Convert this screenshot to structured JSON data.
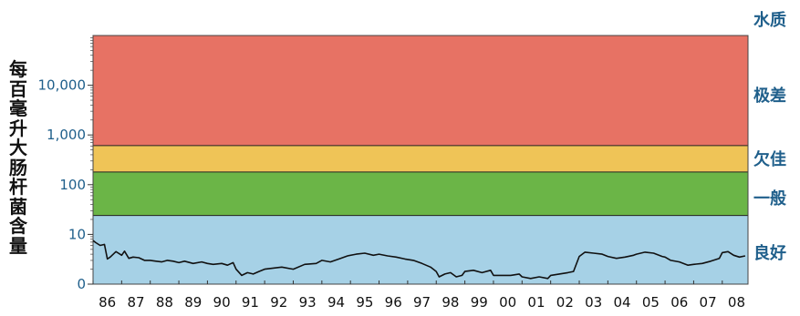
{
  "chart_data": {
    "type": "line",
    "yscale": "log",
    "ylabel": "每百毫升大肠杆菌含量",
    "ytick_labels": [
      "0",
      "10",
      "100",
      "1,000",
      "10,000"
    ],
    "ytick_values": [
      1,
      10,
      100,
      1000,
      10000
    ],
    "ylim": [
      1,
      100000
    ],
    "xtick_labels": [
      "86",
      "87",
      "88",
      "89",
      "90",
      "91",
      "92",
      "93",
      "94",
      "95",
      "96",
      "97",
      "98",
      "99",
      "00",
      "01",
      "02",
      "03",
      "04",
      "05",
      "06",
      "07",
      "08"
    ],
    "xlim": [
      1986,
      2008.9
    ],
    "legend_title": "水质",
    "bands": [
      {
        "label": "良好",
        "from": 1,
        "to": 24,
        "color": "#a6d1e6"
      },
      {
        "label": "一般",
        "from": 24,
        "to": 180,
        "color": "#6bb547"
      },
      {
        "label": "欠佳",
        "from": 180,
        "to": 610,
        "color": "#efc457"
      },
      {
        "label": "极差",
        "from": 610,
        "to": 100000,
        "color": "#e77264"
      }
    ],
    "series": [
      {
        "color": "#111111",
        "x": [
          1986.0,
          1986.1,
          1986.25,
          1986.4,
          1986.5,
          1986.6,
          1986.8,
          1987.0,
          1987.1,
          1987.25,
          1987.4,
          1987.6,
          1987.8,
          1988.0,
          1988.2,
          1988.4,
          1988.6,
          1988.8,
          1989.0,
          1989.2,
          1989.5,
          1989.8,
          1990.0,
          1990.2,
          1990.5,
          1990.7,
          1990.9,
          1991.0,
          1991.2,
          1991.4,
          1991.6,
          1991.8,
          1992.0,
          1992.3,
          1992.6,
          1993.0,
          1993.4,
          1993.8,
          1994.0,
          1994.3,
          1994.6,
          1994.9,
          1995.2,
          1995.5,
          1995.8,
          1996.0,
          1996.3,
          1996.6,
          1996.9,
          1997.2,
          1997.5,
          1997.8,
          1998.0,
          1998.1,
          1998.3,
          1998.5,
          1998.7,
          1998.9,
          1999.0,
          1999.3,
          1999.6,
          1999.9,
          2000.0,
          2000.3,
          2000.6,
          2000.9,
          2001.0,
          2001.3,
          2001.6,
          2001.9,
          2002.0,
          2002.3,
          2002.6,
          2002.8,
          2003.0,
          2003.2,
          2003.5,
          2003.8,
          2004.0,
          2004.3,
          2004.6,
          2004.9,
          2005.0,
          2005.3,
          2005.6,
          2005.9,
          2006.0,
          2006.2,
          2006.5,
          2006.8,
          2007.0,
          2007.3,
          2007.6,
          2007.9,
          2008.0,
          2008.2,
          2008.4,
          2008.6,
          2008.8
        ],
        "y": [
          7.5,
          6.8,
          6.0,
          6.3,
          3.2,
          3.5,
          4.5,
          3.8,
          4.6,
          3.3,
          3.5,
          3.4,
          3.0,
          3.0,
          2.9,
          2.8,
          3.0,
          2.9,
          2.7,
          2.9,
          2.6,
          2.8,
          2.6,
          2.5,
          2.6,
          2.4,
          2.7,
          2.0,
          1.5,
          1.7,
          1.6,
          1.8,
          2.0,
          2.1,
          2.2,
          2.0,
          2.5,
          2.6,
          3.0,
          2.8,
          3.2,
          3.7,
          4.0,
          4.2,
          3.8,
          4.0,
          3.7,
          3.5,
          3.2,
          3.0,
          2.6,
          2.2,
          1.8,
          1.4,
          1.6,
          1.7,
          1.4,
          1.5,
          1.8,
          1.9,
          1.7,
          1.9,
          1.5,
          1.5,
          1.5,
          1.6,
          1.4,
          1.3,
          1.4,
          1.3,
          1.5,
          1.6,
          1.7,
          1.8,
          3.6,
          4.4,
          4.2,
          4.0,
          3.6,
          3.3,
          3.5,
          3.8,
          4.0,
          4.4,
          4.2,
          3.6,
          3.5,
          3.0,
          2.8,
          2.4,
          2.5,
          2.6,
          2.9,
          3.3,
          4.3,
          4.5,
          3.8,
          3.5,
          3.7
        ]
      }
    ]
  }
}
